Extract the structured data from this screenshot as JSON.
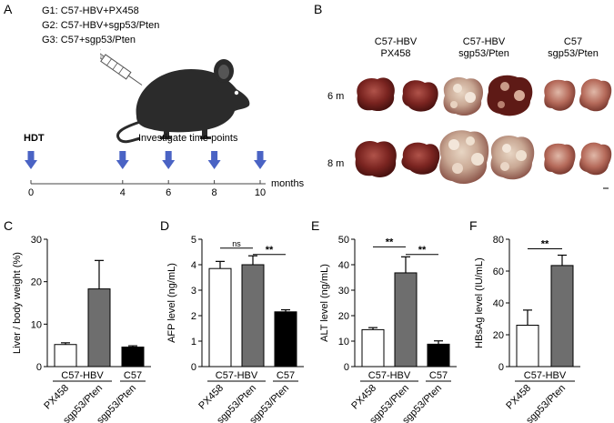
{
  "panelA": {
    "label": "A",
    "groups": [
      "G1: C57-HBV+PX458",
      "G2: C57-HBV+sgp53/Pten",
      "G3: C57+sgp53/Pten"
    ],
    "hdt": "HDT",
    "investigate": "Investigate time points",
    "ticks": [
      "0",
      "4",
      "6",
      "8",
      "10"
    ],
    "tick_values": [
      0,
      4,
      6,
      8,
      10
    ],
    "arrow_values": [
      0,
      4,
      6,
      8,
      10
    ],
    "unit": "months"
  },
  "panelB": {
    "label": "B",
    "columns": [
      {
        "line1": "C57-HBV",
        "line2": "PX458"
      },
      {
        "line1": "C57-HBV",
        "line2": "sgp53/Pten"
      },
      {
        "line1": "C57",
        "line2": "sgp53/Pten"
      }
    ],
    "rows": [
      "6 m",
      "8 m"
    ]
  },
  "chart_data": [
    {
      "panel": "C",
      "type": "bar",
      "ylabel": "Liver / body weight (%)",
      "ylim": [
        0,
        30
      ],
      "yticks": [
        0,
        10,
        20,
        30
      ],
      "categories": [
        "PX458",
        "sgp53/Pten",
        "sgp53/Pten"
      ],
      "values": [
        5.2,
        18.3,
        4.6
      ],
      "errors": [
        0.4,
        6.7,
        0.3
      ],
      "fills": [
        "#ffffff",
        "#6e6e6e",
        "#000000"
      ],
      "groups": [
        {
          "label": "C57-HBV",
          "from": 0,
          "to": 1
        },
        {
          "label": "C57",
          "from": 2,
          "to": 2
        }
      ],
      "sig": []
    },
    {
      "panel": "D",
      "type": "bar",
      "ylabel": "AFP level (ng/mL)",
      "ylim": [
        0,
        5
      ],
      "yticks": [
        0,
        1,
        2,
        3,
        4,
        5
      ],
      "categories": [
        "PX458",
        "sgp53/Pten",
        "sgp53/Pten"
      ],
      "values": [
        3.85,
        4.0,
        2.15
      ],
      "errors": [
        0.28,
        0.35,
        0.08
      ],
      "fills": [
        "#ffffff",
        "#6e6e6e",
        "#000000"
      ],
      "groups": [
        {
          "label": "C57-HBV",
          "from": 0,
          "to": 1
        },
        {
          "label": "C57",
          "from": 2,
          "to": 2
        }
      ],
      "sig": [
        {
          "from": 0,
          "to": 1,
          "label": "ns",
          "y": 4.65
        },
        {
          "from": 1,
          "to": 2,
          "label": "**",
          "y": 4.4
        }
      ]
    },
    {
      "panel": "E",
      "type": "bar",
      "ylabel": "ALT level (ng/mL)",
      "ylim": [
        0,
        50
      ],
      "yticks": [
        0,
        10,
        20,
        30,
        40,
        50
      ],
      "categories": [
        "PX458",
        "sgp53/Pten",
        "sgp53/Pten"
      ],
      "values": [
        14.5,
        36.8,
        8.8
      ],
      "errors": [
        0.8,
        6.3,
        1.3
      ],
      "fills": [
        "#ffffff",
        "#6e6e6e",
        "#000000"
      ],
      "groups": [
        {
          "label": "C57-HBV",
          "from": 0,
          "to": 1
        },
        {
          "label": "C57",
          "from": 2,
          "to": 2
        }
      ],
      "sig": [
        {
          "from": 0,
          "to": 1,
          "label": "**",
          "y": 47
        },
        {
          "from": 1,
          "to": 2,
          "label": "**",
          "y": 44
        }
      ]
    },
    {
      "panel": "F",
      "type": "bar",
      "ylabel": "HBsAg level (IU/mL)",
      "ylim": [
        0,
        80
      ],
      "yticks": [
        0,
        20,
        40,
        60,
        80
      ],
      "categories": [
        "PX458",
        "sgp53/Pten"
      ],
      "values": [
        26,
        63.5
      ],
      "errors": [
        9.5,
        6.5
      ],
      "fills": [
        "#ffffff",
        "#6e6e6e"
      ],
      "groups": [
        {
          "label": "C57-HBV",
          "from": 0,
          "to": 1
        }
      ],
      "sig": [
        {
          "from": 0,
          "to": 1,
          "label": "**",
          "y": 74
        }
      ]
    }
  ]
}
